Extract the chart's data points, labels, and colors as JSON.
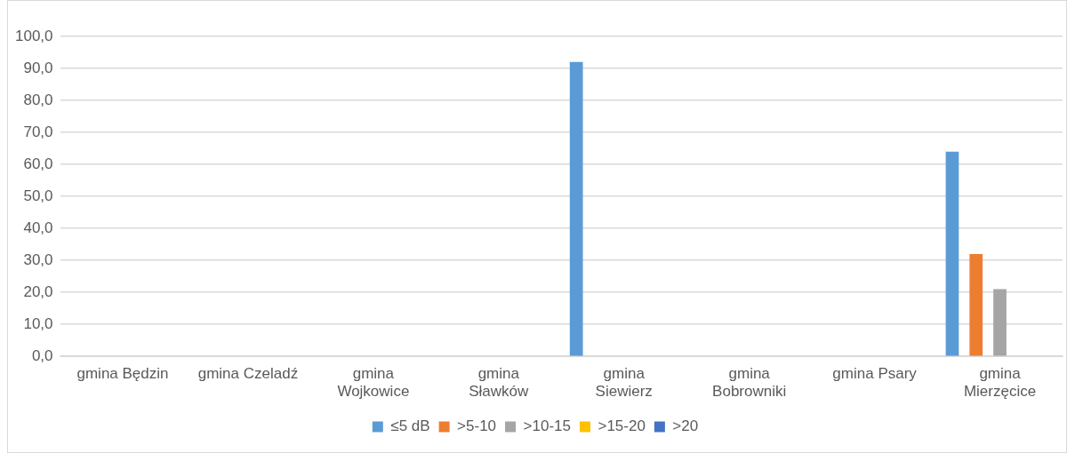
{
  "chart_data": {
    "type": "bar",
    "categories": [
      "gmina Będzin",
      "gmina Czeladź",
      "gmina Wojkowice",
      "gmina Sławków",
      "gmina Siewierz",
      "gmina Bobrowniki",
      "gmina Psary",
      "gmina Mierzęcice"
    ],
    "series": [
      {
        "name": "≤5 dB",
        "color": "#5b9bd5",
        "values": [
          0,
          0,
          0,
          0,
          92,
          0,
          0,
          64
        ]
      },
      {
        "name": ">5-10",
        "color": "#ed7d31",
        "values": [
          0,
          0,
          0,
          0,
          0,
          0,
          0,
          32
        ]
      },
      {
        "name": ">10-15",
        "color": "#a5a5a5",
        "values": [
          0,
          0,
          0,
          0,
          0,
          0,
          0,
          21
        ]
      },
      {
        "name": ">15-20",
        "color": "#ffc000",
        "values": [
          0,
          0,
          0,
          0,
          0,
          0,
          0,
          0
        ]
      },
      {
        "name": ">20",
        "color": "#4472c4",
        "values": [
          0,
          0,
          0,
          0,
          0,
          0,
          0,
          0
        ]
      }
    ],
    "ylim": [
      0,
      100
    ],
    "yticks": [
      {
        "value": 0,
        "label": "0,0"
      },
      {
        "value": 10,
        "label": "10,0"
      },
      {
        "value": 20,
        "label": "20,0"
      },
      {
        "value": 30,
        "label": "30,0"
      },
      {
        "value": 40,
        "label": "40,0"
      },
      {
        "value": 50,
        "label": "50,0"
      },
      {
        "value": 60,
        "label": "60,0"
      },
      {
        "value": 70,
        "label": "70,0"
      },
      {
        "value": 80,
        "label": "80,0"
      },
      {
        "value": 90,
        "label": "90,0"
      },
      {
        "value": 100,
        "label": "100,0"
      }
    ],
    "grid": "y",
    "legend": "bottom"
  }
}
